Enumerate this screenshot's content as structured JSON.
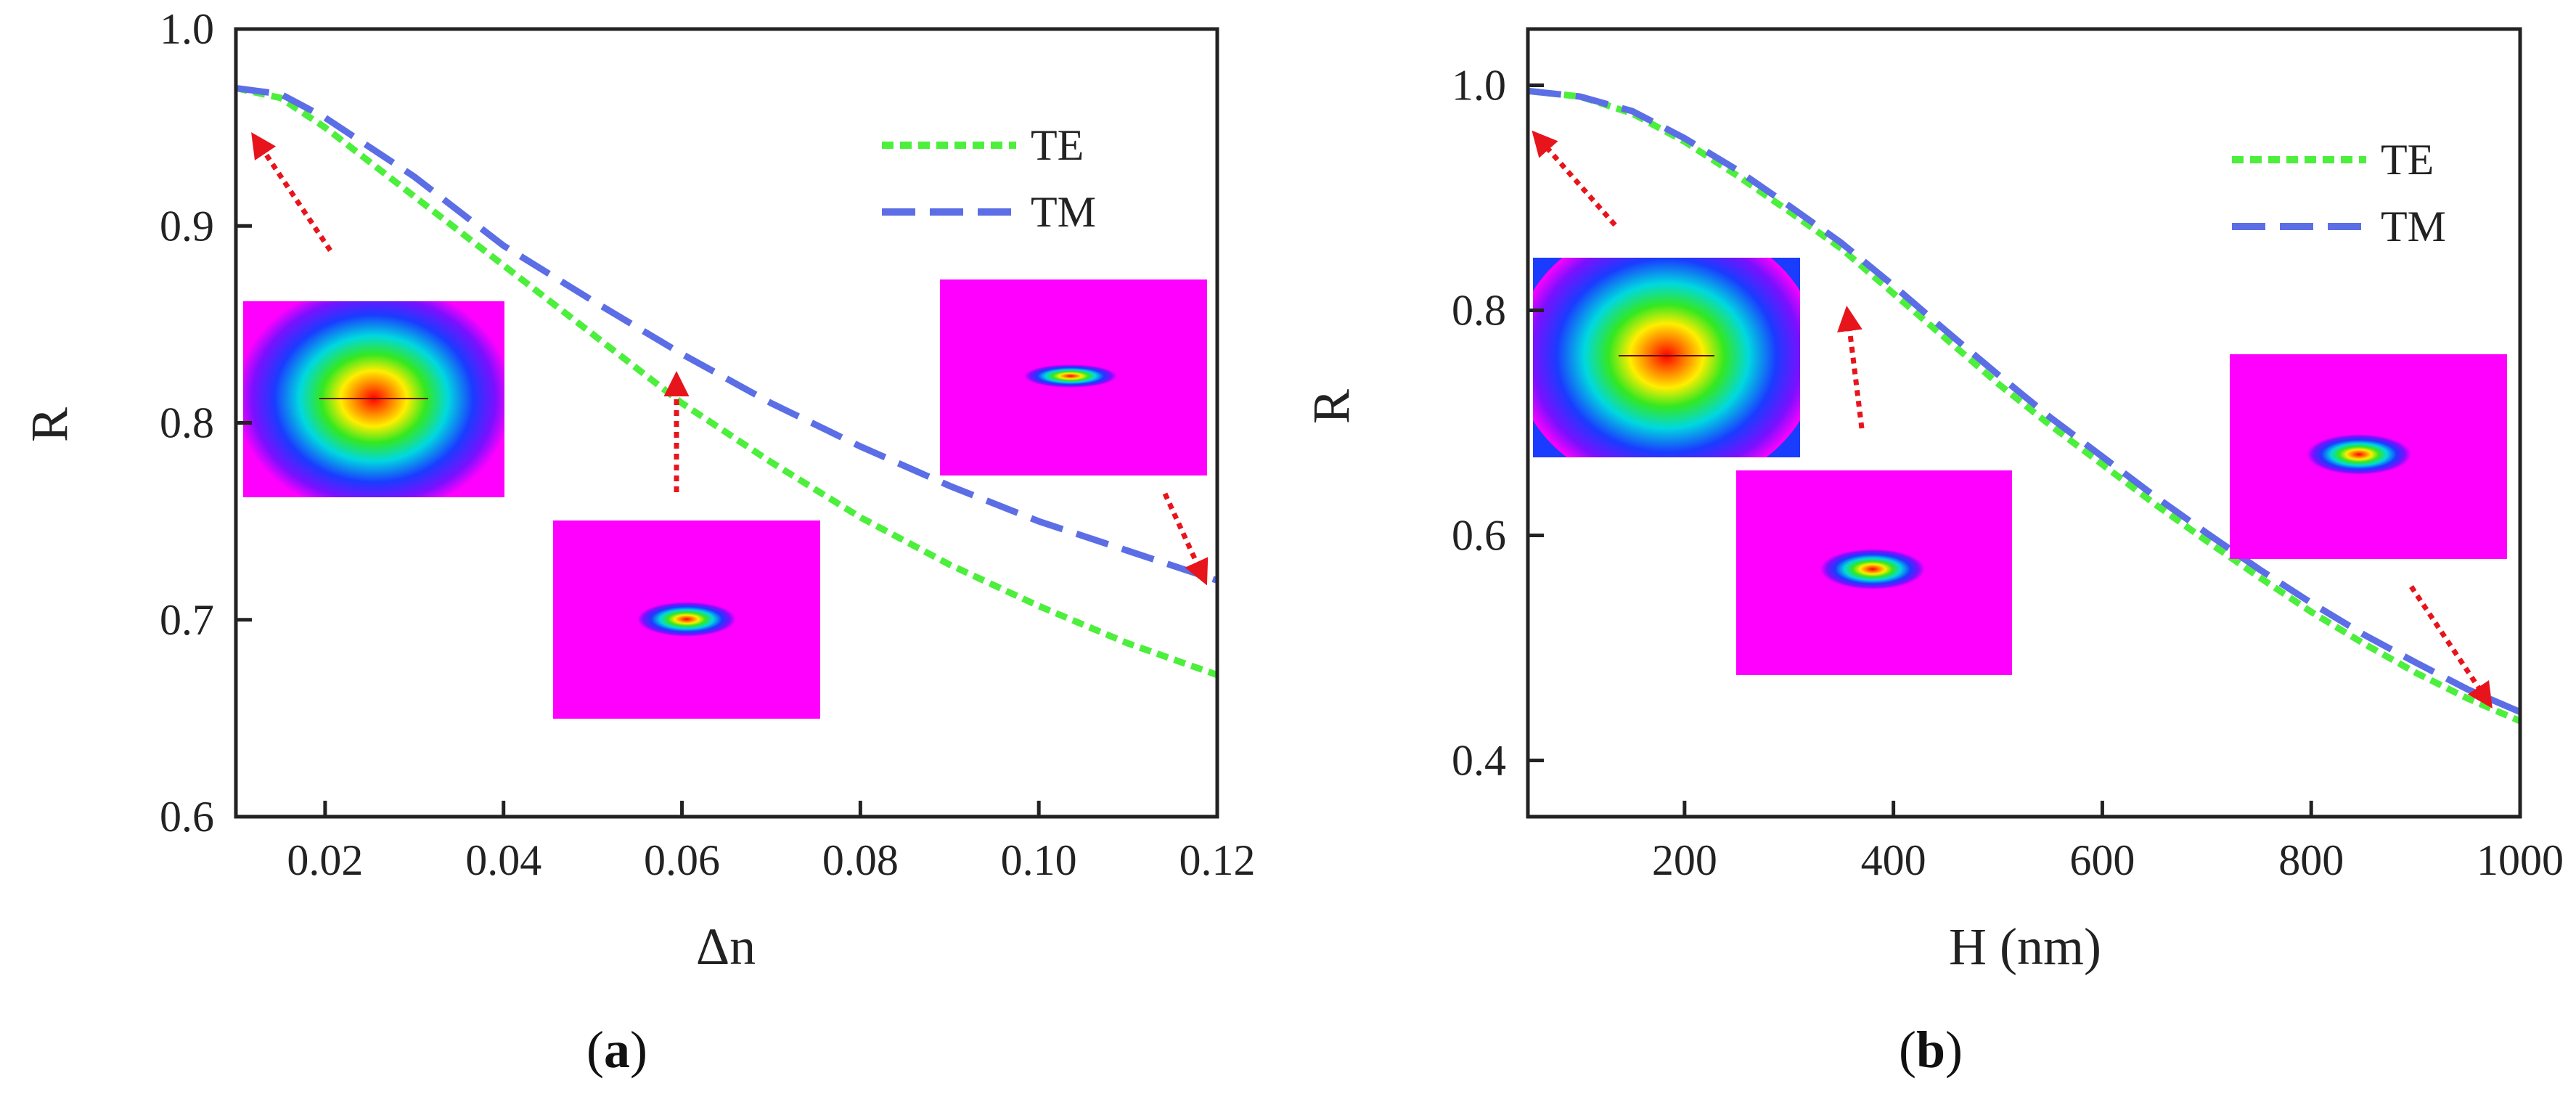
{
  "colors": {
    "te": "#4cef3c",
    "tm": "#5c6ee6",
    "arrow": "#e8141c",
    "inset_bg": "#ff00ff"
  },
  "chart_data": [
    {
      "type": "line",
      "panel_label": "(a)",
      "caption_letter": "a",
      "xlabel": "Δn",
      "ylabel": "R",
      "xlim": [
        0.01,
        0.12
      ],
      "ylim": [
        0.6,
        1.0
      ],
      "xticks": [
        0.02,
        0.04,
        0.06,
        0.08,
        0.1,
        0.12
      ],
      "xtick_labels": [
        "0.02",
        "0.04",
        "0.06",
        "0.08",
        "0.10",
        "0.12"
      ],
      "yticks": [
        0.6,
        0.7,
        0.8,
        0.9,
        1.0
      ],
      "ytick_labels": [
        "0.6",
        "0.7",
        "0.8",
        "0.9",
        "1.0"
      ],
      "legend": [
        "TE",
        "TM"
      ],
      "legend_position": "top-right",
      "series": [
        {
          "name": "TE",
          "x": [
            0.01,
            0.015,
            0.02,
            0.03,
            0.04,
            0.05,
            0.06,
            0.07,
            0.08,
            0.09,
            0.1,
            0.11,
            0.12
          ],
          "values": [
            0.97,
            0.965,
            0.95,
            0.915,
            0.88,
            0.845,
            0.81,
            0.78,
            0.752,
            0.728,
            0.707,
            0.688,
            0.672
          ]
        },
        {
          "name": "TM",
          "x": [
            0.01,
            0.015,
            0.02,
            0.03,
            0.04,
            0.05,
            0.06,
            0.07,
            0.08,
            0.09,
            0.1,
            0.11,
            0.12
          ],
          "values": [
            0.97,
            0.967,
            0.955,
            0.925,
            0.89,
            0.862,
            0.835,
            0.81,
            0.788,
            0.768,
            0.75,
            0.735,
            0.72
          ]
        }
      ]
    },
    {
      "type": "line",
      "panel_label": "(b)",
      "caption_letter": "b",
      "xlabel": "H (nm)",
      "ylabel": "R",
      "xlim": [
        50,
        1000
      ],
      "ylim": [
        0.35,
        1.05
      ],
      "xticks": [
        200,
        400,
        600,
        800,
        1000
      ],
      "xtick_labels": [
        "200",
        "400",
        "600",
        "800",
        "1000"
      ],
      "yticks": [
        0.4,
        0.6,
        0.8,
        1.0
      ],
      "ytick_labels": [
        "0.4",
        "0.6",
        "0.8",
        "1.0"
      ],
      "legend": [
        "TE",
        "TM"
      ],
      "legend_position": "top-right",
      "series": [
        {
          "name": "TE",
          "x": [
            50,
            100,
            150,
            200,
            250,
            300,
            350,
            400,
            450,
            500,
            550,
            600,
            650,
            700,
            750,
            800,
            850,
            900,
            950,
            1000
          ],
          "values": [
            0.995,
            0.99,
            0.975,
            0.95,
            0.92,
            0.888,
            0.855,
            0.815,
            0.775,
            0.735,
            0.698,
            0.663,
            0.628,
            0.595,
            0.563,
            0.532,
            0.504,
            0.478,
            0.455,
            0.435
          ]
        },
        {
          "name": "TM",
          "x": [
            50,
            100,
            150,
            200,
            250,
            300,
            350,
            400,
            450,
            500,
            550,
            600,
            650,
            700,
            750,
            800,
            850,
            900,
            950,
            1000
          ],
          "values": [
            0.995,
            0.99,
            0.977,
            0.953,
            0.925,
            0.893,
            0.86,
            0.822,
            0.782,
            0.743,
            0.705,
            0.67,
            0.635,
            0.602,
            0.57,
            0.54,
            0.512,
            0.487,
            0.463,
            0.443
          ]
        }
      ]
    }
  ]
}
